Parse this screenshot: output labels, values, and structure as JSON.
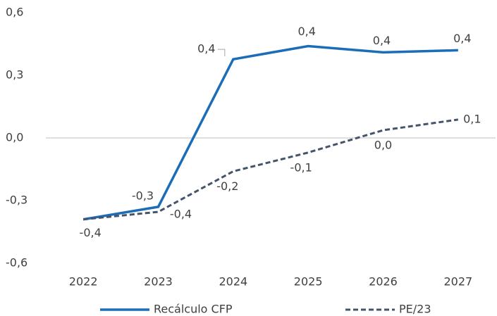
{
  "chart_data": {
    "type": "line",
    "categories": [
      "2022",
      "2023",
      "2024",
      "2025",
      "2026",
      "2027"
    ],
    "series": [
      {
        "name": "Recálculo CFP",
        "color": "#1b6db8",
        "dash": false,
        "values": [
          -0.39,
          -0.33,
          0.377,
          0.44,
          0.41,
          0.42
        ],
        "value_labels": [
          null,
          "-0,3",
          "0,4",
          "0,4",
          "0,4",
          "0,4"
        ]
      },
      {
        "name": "PE/23",
        "color": "#44546a",
        "dash": true,
        "values": [
          -0.39,
          -0.354,
          -0.16,
          -0.07,
          0.037,
          0.088
        ],
        "value_labels": [
          "-0,4",
          "-0,4",
          "-0,2",
          "-0,1",
          "0,0",
          "0,1"
        ]
      }
    ],
    "ylim": [
      -0.6,
      0.6
    ],
    "yticks": [
      {
        "value": 0.6,
        "label": "0,6"
      },
      {
        "value": 0.3,
        "label": "0,3"
      },
      {
        "value": 0,
        "label": "0,0"
      },
      {
        "value": -0.3,
        "label": "-0,3"
      },
      {
        "value": -0.6,
        "label": "-0,6"
      }
    ],
    "grid": false,
    "legend": "bottom"
  }
}
